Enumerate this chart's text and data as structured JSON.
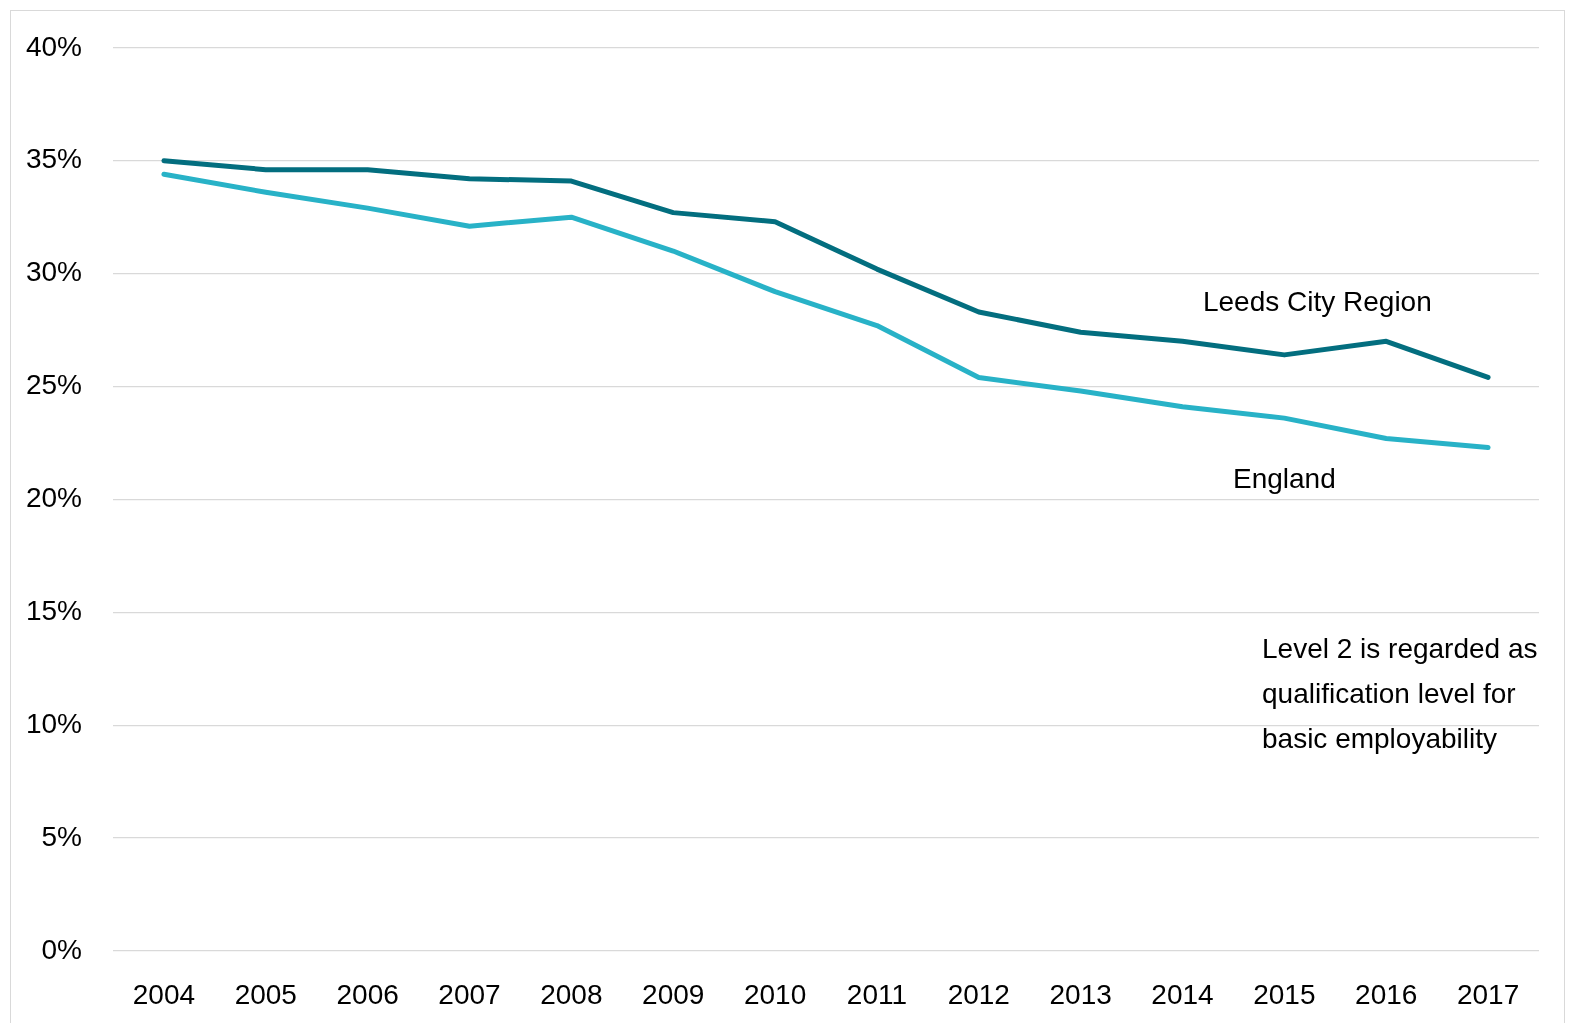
{
  "chart_data": {
    "type": "line",
    "categories": [
      "2004",
      "2005",
      "2006",
      "2007",
      "2008",
      "2009",
      "2010",
      "2011",
      "2012",
      "2013",
      "2014",
      "2015",
      "2016",
      "2017"
    ],
    "series": [
      {
        "name": "Leeds City Region",
        "color": "#036e7f",
        "values": [
          35.0,
          34.6,
          34.6,
          34.2,
          34.1,
          32.7,
          32.3,
          30.2,
          28.3,
          27.4,
          27.0,
          26.4,
          27.0,
          25.4
        ]
      },
      {
        "name": "England",
        "color": "#28b2c7",
        "values": [
          34.4,
          33.6,
          32.9,
          32.1,
          32.5,
          31.0,
          29.2,
          27.7,
          25.4,
          24.8,
          24.1,
          23.6,
          22.7,
          22.3
        ]
      }
    ],
    "ylim": [
      0,
      40
    ],
    "yticks": [
      {
        "value": 0,
        "label": "0%"
      },
      {
        "value": 5,
        "label": "5%"
      },
      {
        "value": 10,
        "label": "10%"
      },
      {
        "value": 15,
        "label": "15%"
      },
      {
        "value": 20,
        "label": "20%"
      },
      {
        "value": 25,
        "label": "25%"
      },
      {
        "value": 30,
        "label": "30%"
      },
      {
        "value": 35,
        "label": "35%"
      },
      {
        "value": 40,
        "label": "40%"
      }
    ],
    "grid": "y",
    "legend": false,
    "marker": "none",
    "annotations": [
      "Level 2 is regarded as qualification level for basic employability"
    ]
  }
}
